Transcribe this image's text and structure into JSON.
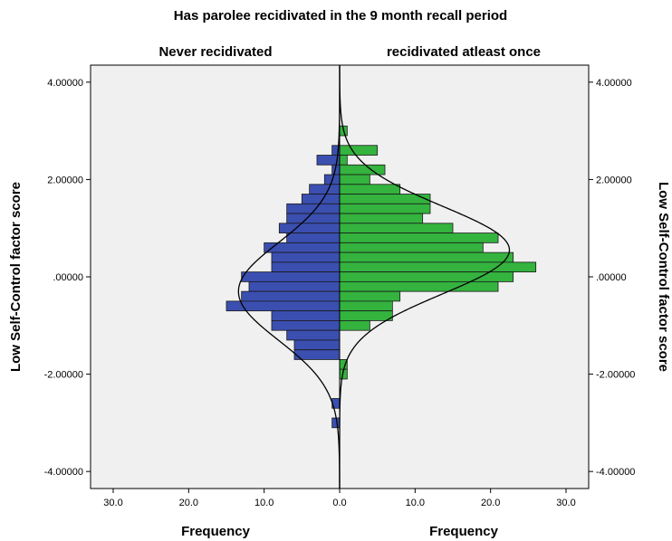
{
  "chart_data": {
    "type": "bar",
    "orientation": "horizontal-population-pyramid",
    "title": "Has parolee recidivated in the 9 month recall period",
    "panels": [
      {
        "name": "Never recidivated",
        "side": "left",
        "color": "#3b4fb0"
      },
      {
        "name": "recidivated atleast once",
        "side": "right",
        "color": "#34b33e"
      }
    ],
    "ylabel": "Low Self-Control factor score",
    "xlabel": "Frequency",
    "ylim": [
      -4.35,
      4.35
    ],
    "xlim": [
      0,
      33
    ],
    "y_ticks": [
      4,
      2,
      0,
      -2,
      -4
    ],
    "y_tick_labels": [
      "4.00000",
      "2.00000",
      ".00000",
      "-2.00000",
      "-4.00000"
    ],
    "x_ticks": [
      30,
      20,
      10,
      0,
      10,
      20,
      30
    ],
    "x_tick_labels": [
      "30.0",
      "20.0",
      "10.0",
      "0.0",
      "10.0",
      "20.0",
      "30.0"
    ],
    "bin_width": 0.2,
    "never_bins": [
      {
        "y": 2.6,
        "value": 1
      },
      {
        "y": 2.4,
        "value": 3
      },
      {
        "y": 2.2,
        "value": 1
      },
      {
        "y": 2.0,
        "value": 2
      },
      {
        "y": 1.8,
        "value": 4
      },
      {
        "y": 1.6,
        "value": 5
      },
      {
        "y": 1.4,
        "value": 7
      },
      {
        "y": 1.2,
        "value": 7
      },
      {
        "y": 1.0,
        "value": 8
      },
      {
        "y": 0.8,
        "value": 7
      },
      {
        "y": 0.6,
        "value": 10
      },
      {
        "y": 0.4,
        "value": 9
      },
      {
        "y": 0.2,
        "value": 9
      },
      {
        "y": 0.0,
        "value": 13
      },
      {
        "y": -0.2,
        "value": 12
      },
      {
        "y": -0.4,
        "value": 13
      },
      {
        "y": -0.6,
        "value": 15
      },
      {
        "y": -0.8,
        "value": 9
      },
      {
        "y": -1.0,
        "value": 9
      },
      {
        "y": -1.2,
        "value": 7
      },
      {
        "y": -1.4,
        "value": 6
      },
      {
        "y": -1.6,
        "value": 6
      },
      {
        "y": -2.6,
        "value": 1
      },
      {
        "y": -3.0,
        "value": 1
      }
    ],
    "recid_bins": [
      {
        "y": 3.0,
        "value": 1
      },
      {
        "y": 2.6,
        "value": 5
      },
      {
        "y": 2.4,
        "value": 1
      },
      {
        "y": 2.2,
        "value": 6
      },
      {
        "y": 2.0,
        "value": 4
      },
      {
        "y": 1.8,
        "value": 8
      },
      {
        "y": 1.6,
        "value": 12
      },
      {
        "y": 1.4,
        "value": 12
      },
      {
        "y": 1.2,
        "value": 11
      },
      {
        "y": 1.0,
        "value": 15
      },
      {
        "y": 0.8,
        "value": 21
      },
      {
        "y": 0.6,
        "value": 19
      },
      {
        "y": 0.4,
        "value": 23
      },
      {
        "y": 0.2,
        "value": 26
      },
      {
        "y": 0.0,
        "value": 23
      },
      {
        "y": -0.2,
        "value": 21
      },
      {
        "y": -0.4,
        "value": 8
      },
      {
        "y": -0.6,
        "value": 7
      },
      {
        "y": -0.8,
        "value": 7
      },
      {
        "y": -1.0,
        "value": 4
      },
      {
        "y": -1.8,
        "value": 1
      },
      {
        "y": -2.0,
        "value": 1
      }
    ],
    "normal_curves": {
      "never": {
        "mean": -0.3,
        "sd": 1.0,
        "peak": 13.4
      },
      "recidivated": {
        "mean": 0.55,
        "sd": 0.9,
        "peak": 22.5
      }
    },
    "grid": false,
    "legend": "none",
    "background_color": "#f0f0f0"
  }
}
